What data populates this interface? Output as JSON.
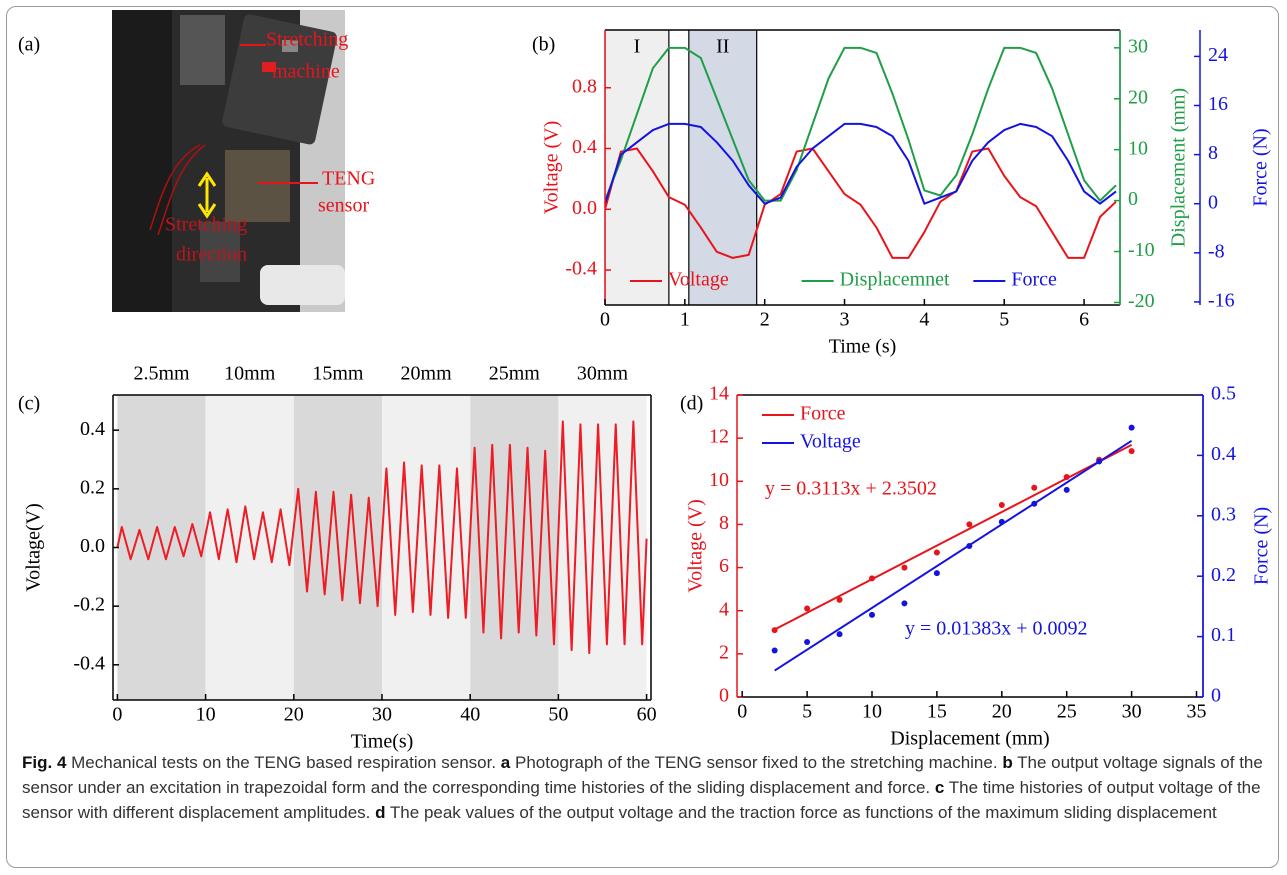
{
  "figure": {
    "panel_label": "(a)",
    "photo_labels": [
      [
        "Stretching",
        "machine"
      ],
      [
        "TENG",
        "sensor"
      ],
      [
        "Stretching",
        "direction"
      ]
    ],
    "caption": {
      "label": "Fig. 4",
      "text": "Mechanical tests on the TENG based respiration sensor.",
      "parts": [
        {
          "letter": "a",
          "text": "Photograph of the TENG sensor fixed to the stretching machine."
        },
        {
          "letter": "b",
          "text": "The output voltage signals of the sensor under an excitation in trapezoidal form and the corresponding time histories of the sliding displacement and force."
        },
        {
          "letter": "c",
          "text": "The time histories of output voltage of the sensor with different displacement amplitudes."
        },
        {
          "letter": "d",
          "text": "The peak values of the output voltage and the traction force as functions of the maximum sliding displacement"
        }
      ]
    }
  },
  "chart_data": [
    {
      "type": "line",
      "panel_label": "(b)",
      "xlabel": "Time (s)",
      "ylabel": "Voltage (V)",
      "y2label": "Displacement (mm)",
      "y3label": "Force (N)",
      "y_color": "#e8141b",
      "y2_color": "#1f9e48",
      "y3_color": "#1414e0",
      "x": [
        0,
        0.2,
        0.4,
        0.6,
        0.8,
        1.0,
        1.2,
        1.4,
        1.6,
        1.8,
        2.0,
        2.2,
        2.4,
        2.6,
        2.8,
        3.0,
        3.2,
        3.4,
        3.6,
        3.8,
        4.0,
        4.2,
        4.4,
        4.6,
        4.8,
        5.0,
        5.2,
        5.4,
        5.6,
        5.8,
        6.0,
        6.2,
        6.4
      ],
      "xlim": [
        0,
        6.45
      ],
      "xticks": [
        0,
        1,
        2,
        3,
        4,
        5,
        6
      ],
      "ylim": [
        -0.63,
        1.18
      ],
      "yticks": [
        -0.4,
        {
          "value": 0,
          "label": "0.0"
        },
        0.4,
        0.8
      ],
      "y2lim": [
        -20.5,
        33.5
      ],
      "y2ticks": [
        -20,
        -10,
        0,
        10,
        20,
        30
      ],
      "y3lim": [
        -16.5,
        28.3
      ],
      "y3ticks": [
        -16,
        -8,
        0,
        8,
        16,
        24
      ],
      "regions": [
        {
          "label": "I",
          "start": 0,
          "end": 0.8,
          "color": "#efefef"
        },
        {
          "label": "II",
          "start": 1.05,
          "end": 1.9,
          "color": "#d3dae5"
        }
      ],
      "legend": "lower center",
      "series": [
        {
          "name": "Voltage",
          "color": "#e8141b",
          "values": [
            0,
            0.38,
            0.4,
            0.25,
            0.08,
            0.03,
            -0.12,
            -0.28,
            -0.32,
            -0.3,
            0.03,
            0.1,
            0.38,
            0.4,
            0.25,
            0.1,
            0.03,
            -0.12,
            -0.32,
            -0.32,
            -0.15,
            0.05,
            0.12,
            0.38,
            0.4,
            0.22,
            0.08,
            0.02,
            -0.15,
            -0.32,
            -0.32,
            -0.05,
            0.05
          ]
        },
        {
          "name": "Displacemnet",
          "color": "#1f9e48",
          "axis": "y2",
          "values": [
            0,
            8,
            17,
            26,
            30,
            30,
            28,
            20,
            12,
            4,
            0,
            0,
            6,
            15,
            24,
            30,
            30,
            29,
            21,
            12,
            2,
            1,
            5,
            13,
            22,
            30,
            30,
            29,
            22,
            13,
            4,
            0,
            3
          ]
        },
        {
          "name": "Force",
          "color": "#1414e0",
          "axis": "y3",
          "values": [
            0,
            8,
            10,
            12,
            13,
            13,
            12.5,
            10,
            7,
            3,
            0,
            1,
            6,
            9,
            11,
            13,
            13,
            12.5,
            11,
            7,
            0,
            1,
            2,
            7,
            10,
            12,
            13,
            12.5,
            11,
            7,
            2,
            0,
            2
          ]
        }
      ]
    },
    {
      "type": "line",
      "panel_label": "(c)",
      "xlabel": "Time(s)",
      "ylabel": "Voltage(V)",
      "x": [
        0,
        0.5,
        1.5,
        2.5,
        3.5,
        4.5,
        5.5,
        6.5,
        7.5,
        8.5,
        9.5,
        10.5,
        11.5,
        12.5,
        13.5,
        14.5,
        15.5,
        16.5,
        17.5,
        18.5,
        19.5,
        20.5,
        21.5,
        22.5,
        23.5,
        24.5,
        25.5,
        26.5,
        27.5,
        28.5,
        29.5,
        30.5,
        31.5,
        32.5,
        33.5,
        34.5,
        35.5,
        36.5,
        37.5,
        38.5,
        39.5,
        40.5,
        41.5,
        42.5,
        43.5,
        44.5,
        45.5,
        46.5,
        47.5,
        48.5,
        49.5,
        50.5,
        51.5,
        52.5,
        53.5,
        54.5,
        55.5,
        56.5,
        57.5,
        58.5,
        59.5,
        60
      ],
      "xlim": [
        -0.5,
        60.5
      ],
      "xticks": [
        0,
        10,
        20,
        30,
        40,
        50,
        60
      ],
      "ylim": [
        -0.52,
        0.52
      ],
      "yticks": [
        -0.4,
        -0.2,
        {
          "value": 0,
          "label": "0.0"
        },
        0.2,
        0.4
      ],
      "bands": [
        {
          "label": "2.5mm",
          "start": 0,
          "end": 10,
          "color": "#d9d9d9"
        },
        {
          "label": "10mm",
          "start": 10,
          "end": 20,
          "color": "#f0f0f0"
        },
        {
          "label": "15mm",
          "start": 20,
          "end": 30,
          "color": "#d9d9d9"
        },
        {
          "label": "20mm",
          "start": 30,
          "end": 40,
          "color": "#f0f0f0"
        },
        {
          "label": "25mm",
          "start": 40,
          "end": 50,
          "color": "#d9d9d9"
        },
        {
          "label": "30mm",
          "start": 50,
          "end": 60,
          "color": "#f0f0f0"
        }
      ],
      "series": [
        {
          "color": "#ee1c25",
          "values": [
            0,
            0.07,
            -0.04,
            0.06,
            -0.04,
            0.07,
            -0.04,
            0.07,
            -0.03,
            0.08,
            -0.03,
            0.12,
            -0.04,
            0.13,
            -0.05,
            0.14,
            -0.04,
            0.12,
            -0.05,
            0.13,
            -0.06,
            0.2,
            -0.15,
            0.19,
            -0.16,
            0.19,
            -0.18,
            0.18,
            -0.19,
            0.17,
            -0.2,
            0.27,
            -0.23,
            0.29,
            -0.22,
            0.28,
            -0.23,
            0.28,
            -0.24,
            0.27,
            -0.24,
            0.34,
            -0.29,
            0.35,
            -0.31,
            0.35,
            -0.29,
            0.34,
            -0.3,
            0.33,
            -0.33,
            0.43,
            -0.35,
            0.42,
            -0.36,
            0.42,
            -0.33,
            0.42,
            -0.33,
            0.43,
            -0.33,
            0.03
          ]
        }
      ]
    },
    {
      "type": "scatter",
      "panel_label": "(d)",
      "xlabel": "Displacement (mm)",
      "ylabel": "Voltage (V)",
      "y2label": "Force (N)",
      "y_color": "#e8141b",
      "y2_color": "#1414e0",
      "x": [
        2.5,
        5,
        7.5,
        10,
        12.5,
        15,
        17.5,
        20,
        22.5,
        25,
        27.5,
        30
      ],
      "xlim": [
        -0.4,
        35.5
      ],
      "xticks": [
        0,
        5,
        10,
        15,
        20,
        25,
        30,
        35
      ],
      "ylim": [
        0,
        14
      ],
      "yticks": [
        0,
        2,
        4,
        6,
        8,
        10,
        12,
        14
      ],
      "y2lim": [
        0,
        0.5
      ],
      "y2ticks": [
        0,
        0.1,
        0.2,
        0.3,
        0.4,
        0.5
      ],
      "legend": "upper left",
      "series": [
        {
          "name": "Force",
          "color": "#e8141b",
          "values": [
            3.1,
            4.1,
            4.5,
            5.5,
            6.0,
            6.7,
            8.0,
            8.9,
            9.7,
            10.2,
            11.0,
            11.4
          ],
          "fit": {
            "label": "y = 0.3113x + 2.3502",
            "slope": 0.3113,
            "intercept": 2.3502
          }
        },
        {
          "name": "Voltage",
          "color": "#1414e0",
          "axis": "y2",
          "values": [
            0.077,
            0.091,
            0.104,
            0.136,
            0.155,
            0.205,
            0.25,
            0.29,
            0.32,
            0.343,
            0.39,
            0.446
          ],
          "fit": {
            "label": "y = 0.01383x + 0.0092",
            "slope": 0.01383,
            "intercept": 0.0092
          }
        }
      ]
    }
  ]
}
